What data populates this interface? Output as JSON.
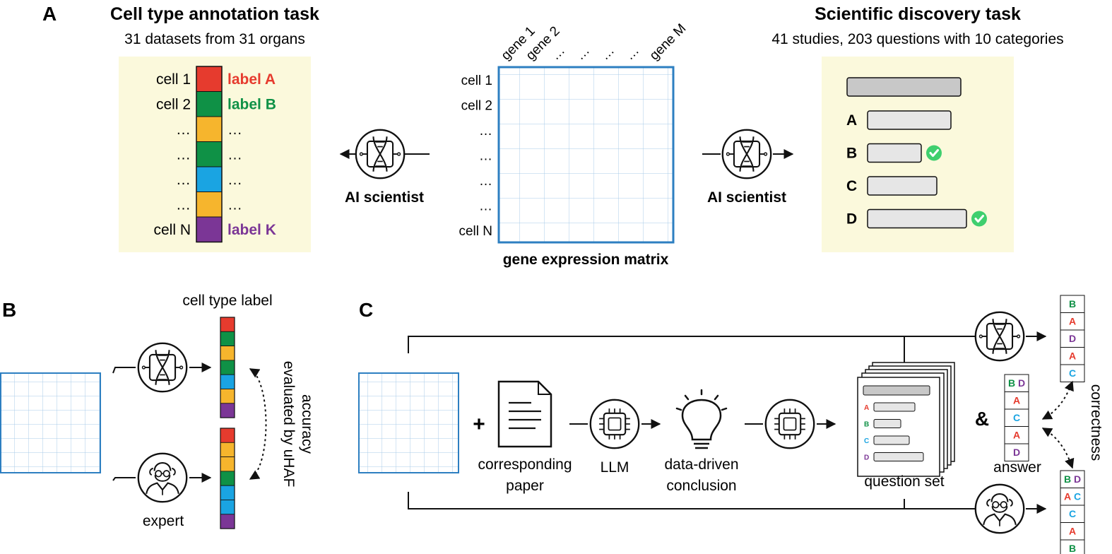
{
  "colors": {
    "red": "#e63b2e",
    "green": "#0f9146",
    "yellow": "#f6b52d",
    "blue": "#1aa4e2",
    "purple": "#7b3696",
    "panel_bg": "#fbf9dc",
    "grid_blue": "#2d7fc1",
    "check_green": "#3fcf6e"
  },
  "panel_a": {
    "letter": "A",
    "left": {
      "title": "Cell type annotation task",
      "subtitle": "31 datasets from 31 organs",
      "rows": [
        {
          "cell": "cell 1",
          "label": "label A",
          "color": "red"
        },
        {
          "cell": "cell 2",
          "label": "label B",
          "color": "green"
        },
        {
          "cell": "…",
          "label": "…",
          "color": "yellow"
        },
        {
          "cell": "…",
          "label": "…",
          "color": "green"
        },
        {
          "cell": "…",
          "label": "…",
          "color": "blue"
        },
        {
          "cell": "…",
          "label": "…",
          "color": "yellow"
        },
        {
          "cell": "cell N",
          "label": "label K",
          "color": "purple"
        }
      ]
    },
    "ai_label_left": "AI scientist",
    "matrix": {
      "genes": [
        "gene 1",
        "gene 2",
        "…",
        "…",
        "…",
        "…",
        "gene M"
      ],
      "cells": [
        "cell 1",
        "cell 2",
        "…",
        "…",
        "…",
        "…",
        "cell N"
      ],
      "caption": "gene expression matrix"
    },
    "ai_label_right": "AI scientist",
    "right": {
      "title": "Scientific discovery task",
      "subtitle": "41 studies, 203 questions with 10 categories",
      "options": [
        {
          "letter": "A",
          "correct": false
        },
        {
          "letter": "B",
          "correct": true
        },
        {
          "letter": "C",
          "correct": false
        },
        {
          "letter": "D",
          "correct": true
        }
      ]
    }
  },
  "panel_b": {
    "letter": "B",
    "cell_type_label": "cell type label",
    "expert_label": "expert",
    "accuracy_text": [
      "accuracy",
      "evaluated by uHAF"
    ],
    "ai_bar": [
      "red",
      "green",
      "yellow",
      "green",
      "blue",
      "yellow",
      "purple"
    ],
    "expert_bar": [
      "red",
      "yellow",
      "yellow",
      "green",
      "blue",
      "blue",
      "purple"
    ]
  },
  "panel_c": {
    "letter": "C",
    "plus": "+",
    "paper_label": [
      "corresponding",
      "paper"
    ],
    "llm_label": "LLM",
    "conclusion_label": [
      "data-driven",
      "conclusion"
    ],
    "question_set_label": "question set",
    "question_letters": [
      "A",
      "B",
      "C",
      "D"
    ],
    "amp": "&",
    "answer_label": "answer",
    "correctness_label": "correctness",
    "answer_stack": [
      [
        {
          "t": "B",
          "c": "green"
        },
        {
          "t": "D",
          "c": "purple"
        }
      ],
      [
        {
          "t": "A",
          "c": "red"
        }
      ],
      [
        {
          "t": "C",
          "c": "blue"
        }
      ],
      [
        {
          "t": "A",
          "c": "red"
        }
      ],
      [
        {
          "t": "D",
          "c": "purple"
        }
      ]
    ],
    "ai_stack": [
      [
        {
          "t": "B",
          "c": "green"
        }
      ],
      [
        {
          "t": "A",
          "c": "red"
        }
      ],
      [
        {
          "t": "D",
          "c": "purple"
        }
      ],
      [
        {
          "t": "A",
          "c": "red"
        }
      ],
      [
        {
          "t": "C",
          "c": "blue"
        }
      ]
    ],
    "expert_stack": [
      [
        {
          "t": "B",
          "c": "green"
        },
        {
          "t": "D",
          "c": "purple"
        }
      ],
      [
        {
          "t": "A",
          "c": "red"
        },
        {
          "t": "C",
          "c": "blue"
        }
      ],
      [
        {
          "t": "C",
          "c": "blue"
        }
      ],
      [
        {
          "t": "A",
          "c": "red"
        }
      ],
      [
        {
          "t": "B",
          "c": "green"
        }
      ]
    ]
  }
}
